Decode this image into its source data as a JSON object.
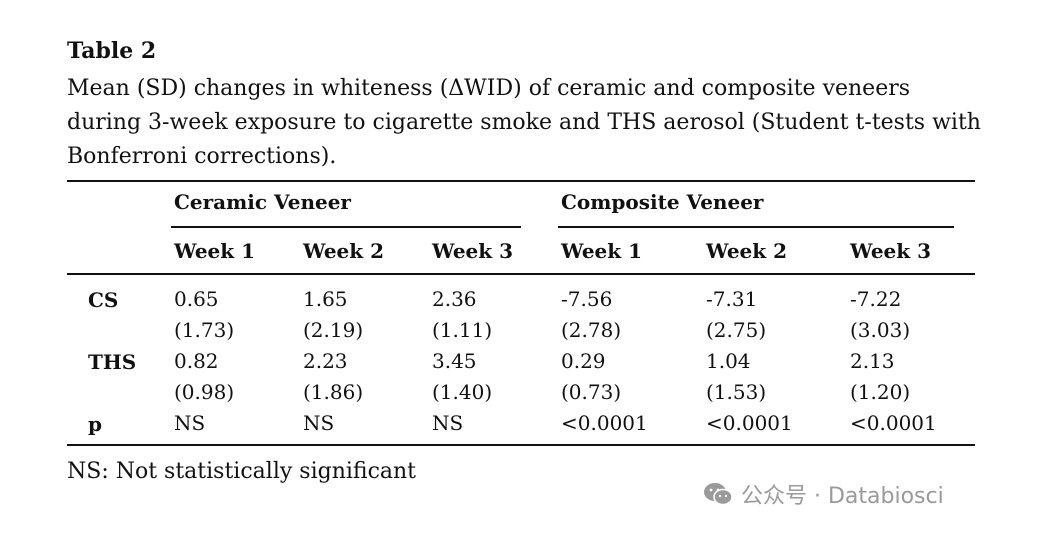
{
  "table": {
    "label": "Table 2",
    "caption_lines": [
      "Mean (SD) changes in whiteness (ΔWID) of ceramic and composite veneers",
      "during 3-week exposure to cigarette smoke and THS aerosol (Student t-tests with",
      "Bonferroni corrections)."
    ],
    "groups": [
      "Ceramic Veneer",
      "Composite Veneer"
    ],
    "columns": [
      "Week 1",
      "Week 2",
      "Week 3",
      "Week 1",
      "Week 2",
      "Week 3"
    ],
    "rows": [
      {
        "label": "CS",
        "cells": [
          {
            "mean": "0.65",
            "sd": "(1.73)"
          },
          {
            "mean": "1.65",
            "sd": "(2.19)"
          },
          {
            "mean": "2.36",
            "sd": "(1.11)"
          },
          {
            "mean": "-7.56",
            "sd": "(2.78)"
          },
          {
            "mean": "-7.31",
            "sd": "(2.75)"
          },
          {
            "mean": "-7.22",
            "sd": "(3.03)"
          }
        ]
      },
      {
        "label": "THS",
        "cells": [
          {
            "mean": "0.82",
            "sd": "(0.98)"
          },
          {
            "mean": "2.23",
            "sd": "(1.86)"
          },
          {
            "mean": "3.45",
            "sd": "(1.40)"
          },
          {
            "mean": "0.29",
            "sd": "(0.73)"
          },
          {
            "mean": "1.04",
            "sd": "(1.53)"
          },
          {
            "mean": "2.13",
            "sd": "(1.20)"
          }
        ]
      },
      {
        "label": "p",
        "cells": [
          {
            "mean": "NS"
          },
          {
            "mean": "NS"
          },
          {
            "mean": "NS"
          },
          {
            "mean": "<0.0001"
          },
          {
            "mean": "<0.0001"
          },
          {
            "mean": "<0.0001"
          }
        ]
      }
    ],
    "footnote": "NS: Not statistically significant"
  },
  "watermark": {
    "text": "公众号 · Databiosci",
    "icon": "wechat-icon",
    "color": "#9a9a9a"
  }
}
